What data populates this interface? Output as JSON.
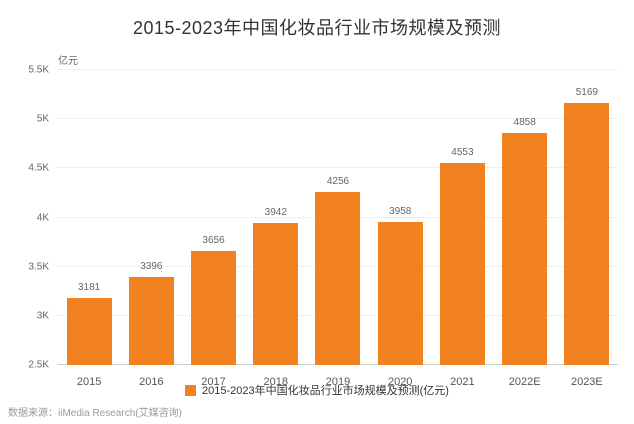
{
  "title": "2015-2023年中国化妆品行业市场规模及预测",
  "y_unit": "亿元",
  "legend": "2015-2023年中国化妆品行业市场规模及预测(亿元)",
  "source": "数据来源：iiMedia Research(艾媒咨询)",
  "colors": {
    "bar": "#F28220"
  },
  "chart_data": {
    "type": "bar",
    "categories": [
      "2015",
      "2016",
      "2017",
      "2018",
      "2019",
      "2020",
      "2021",
      "2022E",
      "2023E"
    ],
    "values": [
      3181,
      3396,
      3656,
      3942,
      4256,
      3958,
      4553,
      4858,
      5169
    ],
    "title": "2015-2023年中国化妆品行业市场规模及预测",
    "xlabel": "",
    "ylabel": "亿元",
    "ylim": [
      2500,
      5500
    ],
    "yticks": [
      {
        "label": "2.5K",
        "value": 2500
      },
      {
        "label": "3K",
        "value": 3000
      },
      {
        "label": "3.5K",
        "value": 3500
      },
      {
        "label": "4K",
        "value": 4000
      },
      {
        "label": "4.5K",
        "value": 4500
      },
      {
        "label": "5K",
        "value": 5000
      },
      {
        "label": "5.5K",
        "value": 5500
      }
    ],
    "grid": true,
    "legend_position": "bottom"
  }
}
